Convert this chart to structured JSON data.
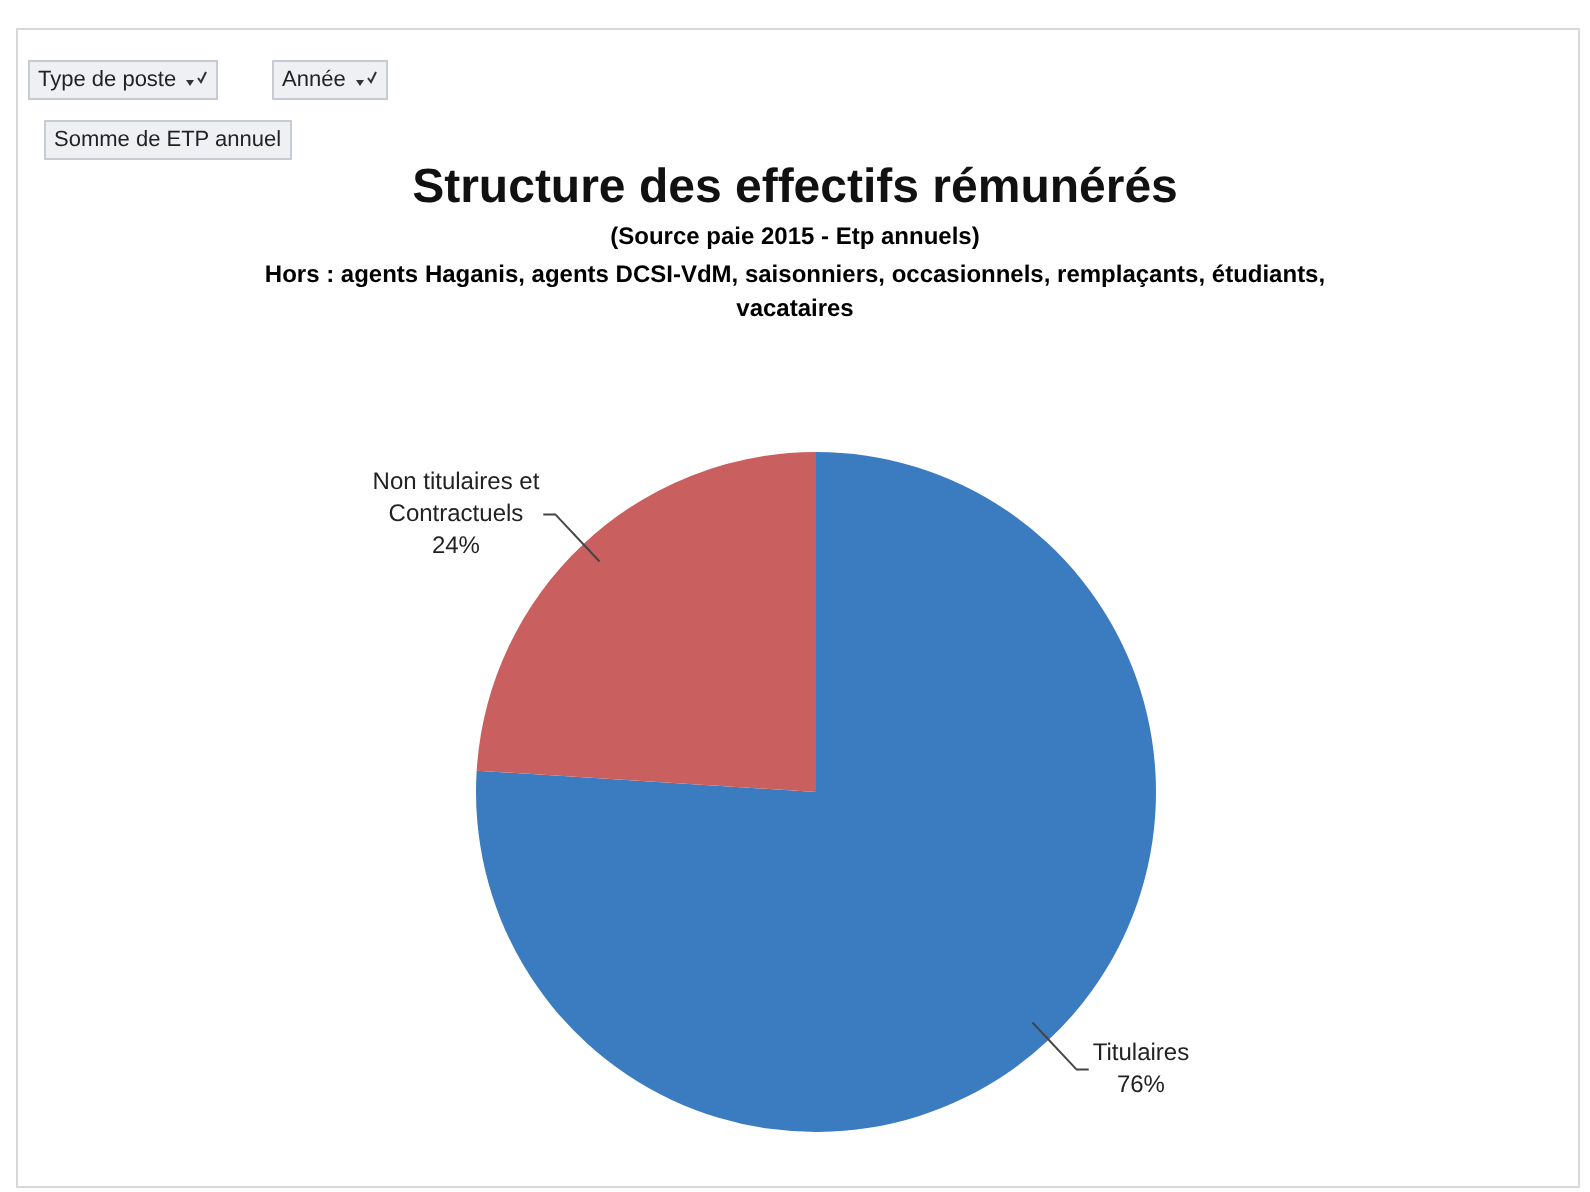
{
  "chart_data": {
    "type": "pie",
    "title": "Structure des effectifs rémunérés",
    "subtitle": "(Source paie 2015 - Etp annuels)",
    "annotations": [
      "Hors : agents Haganis, agents DCSI-VdM, saisonniers, occasionnels, remplaçants, étudiants, vacataires",
      "Type de poste",
      "Année",
      "Somme de ETP annuel"
    ],
    "categories": [
      "Titulaires",
      "Non titulaires et Contractuels"
    ],
    "values": [
      76,
      24
    ],
    "colors": [
      "#3b7bbf",
      "#c95f5e"
    ],
    "value_labels": [
      "76%",
      "24%"
    ],
    "legend": false
  }
}
